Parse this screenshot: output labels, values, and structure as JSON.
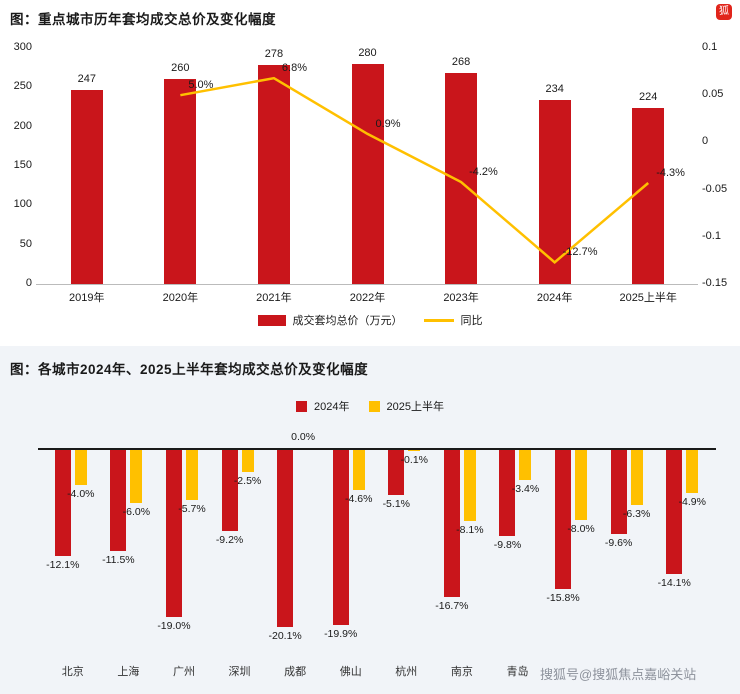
{
  "watermark": "搜狐号@搜狐焦点嘉峪关站",
  "colors": {
    "bar_red": "#c9151b",
    "accent_yellow": "#ffc000",
    "axis_line": "#bbbbbb",
    "zero_line": "#1a1a1a",
    "panel_tint": "#f1f4f8",
    "watermark_gray": "#8d929c",
    "logo_red": "#e1251b"
  },
  "chart_data": [
    {
      "type": "bar",
      "title": "图：重点城市历年套均成交总价及变化幅度",
      "categories": [
        "2019年",
        "2020年",
        "2021年",
        "2022年",
        "2023年",
        "2024年",
        "2025上半年"
      ],
      "bar_series": {
        "name": "成交套均总价（万元）",
        "values": [
          247,
          260,
          278,
          280,
          268,
          234,
          224
        ]
      },
      "line_series": {
        "name": "同比",
        "values": [
          null,
          0.05,
          0.068,
          0.009,
          -0.042,
          -0.127,
          -0.043
        ],
        "labels": [
          "",
          "5.0%",
          "6.8%",
          "0.9%",
          "-4.2%",
          "-12.7%",
          "-4.3%"
        ]
      },
      "left_axis": {
        "min": 0,
        "max": 300,
        "ticks": [
          300,
          250,
          200,
          150,
          100,
          50,
          0
        ]
      },
      "right_axis": {
        "min": -0.15,
        "max": 0.1,
        "ticks": [
          "0.1",
          "0.05",
          "0",
          "-0.05",
          "-0.1",
          "-0.15"
        ]
      },
      "legend_position": "bottom",
      "grid": false
    },
    {
      "type": "bar",
      "title": "图：各城市2024年、2025上半年套均成交总价及变化幅度",
      "categories": [
        "北京",
        "上海",
        "广州",
        "深圳",
        "成都",
        "佛山",
        "杭州",
        "南京",
        "青岛",
        "",
        "",
        ""
      ],
      "series": [
        {
          "name": "2024年",
          "values": [
            -12.1,
            -11.5,
            -19.0,
            -9.2,
            -20.1,
            -19.9,
            -5.1,
            -16.7,
            -9.8,
            -15.8,
            -9.6,
            -14.1
          ],
          "labels": [
            "-12.1%",
            "-11.5%",
            "-19.0%",
            "-9.2%",
            "-20.1%",
            "-19.9%",
            "-5.1%",
            "-16.7%",
            "-9.8%",
            "-15.8%",
            "-9.6%",
            "-14.1%"
          ]
        },
        {
          "name": "2025上半年",
          "values": [
            -4.0,
            -6.0,
            -5.7,
            -2.5,
            0.0,
            -4.6,
            -0.1,
            -8.1,
            -3.4,
            -8.0,
            -6.3,
            -4.9
          ],
          "labels": [
            "-4.0%",
            "-6.0%",
            "-5.7%",
            "-2.5%",
            "0.0%",
            "-4.6%",
            "-0.1%",
            "-8.1%",
            "-3.4%",
            "-8.0%",
            "-6.3%",
            "-4.9%"
          ]
        }
      ],
      "ylim": [
        -22,
        2
      ],
      "legend_position": "top",
      "grid": false
    }
  ]
}
